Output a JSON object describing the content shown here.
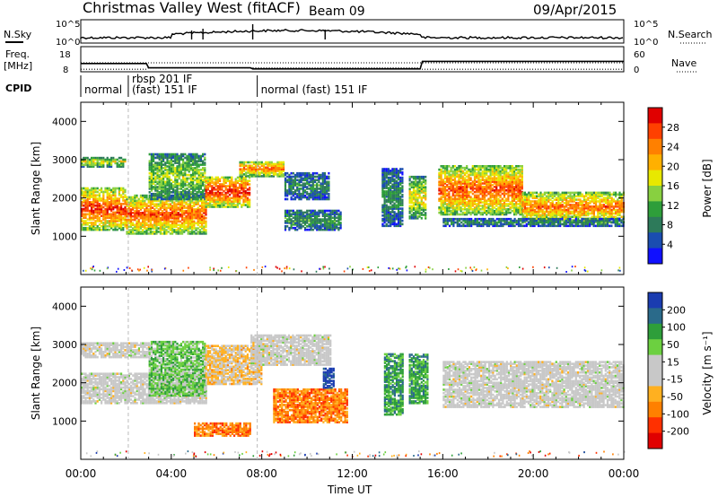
{
  "header": {
    "station": "Christmas Valley West (fitACF)",
    "beam": "Beam 09",
    "date": "09/Apr/2015"
  },
  "top_panels": {
    "nsky_label": "N.Sky",
    "nsky_ticks": [
      "10^5",
      "10^0"
    ],
    "nsearch_label": "N.Search",
    "nsearch_ticks": [
      "10^5",
      "10^0"
    ],
    "freq_label": "Freq.",
    "freq_unit": "[MHz]",
    "freq_ticks": [
      "18",
      "8"
    ],
    "nave_label": "Nave",
    "nave_ticks": [
      "60",
      "0"
    ],
    "cpid_label": "CPID",
    "cpid_segments": [
      {
        "start_h": 0.0,
        "text": "normal"
      },
      {
        "start_h": 2.1,
        "text": "rbsp 201 IF"
      },
      {
        "start_h": 2.1,
        "text": "(fast) 151 IF"
      },
      {
        "start_h": 7.8,
        "text": "normal (fast) 151 IF"
      }
    ],
    "freq_series": [
      [
        0,
        11
      ],
      [
        2.9,
        11
      ],
      [
        3.0,
        9
      ],
      [
        7.5,
        9
      ],
      [
        7.6,
        8.5
      ],
      [
        15.0,
        8.5
      ],
      [
        15.1,
        12
      ],
      [
        24,
        12
      ]
    ],
    "nave_series": [
      [
        0,
        2
      ],
      [
        2.9,
        2
      ],
      [
        3.0,
        6
      ],
      [
        14.9,
        6
      ],
      [
        15.0,
        2
      ],
      [
        24,
        2
      ]
    ]
  },
  "chart_data": [
    {
      "type": "heatmap",
      "panel": "power",
      "ylabel": "Slant Range [km]",
      "yticks": [
        1000,
        2000,
        3000,
        4000
      ],
      "ylim": [
        0,
        4500
      ],
      "xlim": [
        0,
        24
      ],
      "colorbar": {
        "label": "Power [dB]",
        "ticks": [
          "28",
          "24",
          "20",
          "16",
          "12",
          "8",
          "4"
        ],
        "colors": [
          "#e00000",
          "#ff4000",
          "#ff8000",
          "#ffb000",
          "#e8e800",
          "#88d040",
          "#2e9e3a",
          "#2d7a5a",
          "#1a4db0",
          "#1010ff"
        ]
      },
      "bands": [
        {
          "t0": 0.0,
          "t1": 2.0,
          "r0": 1200,
          "r1": 2300,
          "level": 0.9
        },
        {
          "t0": 0.0,
          "t1": 2.0,
          "r0": 2850,
          "r1": 3100,
          "level": 0.55
        },
        {
          "t0": 2.0,
          "t1": 5.5,
          "r0": 1100,
          "r1": 2100,
          "level": 0.85
        },
        {
          "t0": 3.0,
          "t1": 5.5,
          "r0": 2000,
          "r1": 3200,
          "level": 0.5
        },
        {
          "t0": 5.5,
          "t1": 7.5,
          "r0": 1800,
          "r1": 2600,
          "level": 0.95
        },
        {
          "t0": 7.0,
          "t1": 9.0,
          "r0": 2600,
          "r1": 3000,
          "level": 0.8
        },
        {
          "t0": 9.0,
          "t1": 11.5,
          "r0": 1200,
          "r1": 1700,
          "level": 0.35
        },
        {
          "t0": 9.0,
          "t1": 11.0,
          "r0": 2000,
          "r1": 2700,
          "level": 0.3
        },
        {
          "t0": 13.3,
          "t1": 14.2,
          "r0": 1300,
          "r1": 2800,
          "level": 0.3
        },
        {
          "t0": 14.5,
          "t1": 15.2,
          "r0": 1500,
          "r1": 2600,
          "level": 0.6
        },
        {
          "t0": 15.8,
          "t1": 19.5,
          "r0": 1600,
          "r1": 2900,
          "level": 0.85
        },
        {
          "t0": 19.5,
          "t1": 24.0,
          "r0": 1400,
          "r1": 2200,
          "level": 0.8
        },
        {
          "t0": 16.0,
          "t1": 24.0,
          "r0": 1300,
          "r1": 1500,
          "level": 0.3
        }
      ]
    },
    {
      "type": "heatmap",
      "panel": "velocity",
      "ylabel": "Slant Range [km]",
      "yticks": [
        1000,
        2000,
        3000,
        4000
      ],
      "ylim": [
        0,
        4500
      ],
      "xlim": [
        0,
        24
      ],
      "xticks": [
        "00:00",
        "04:00",
        "08:00",
        "12:00",
        "16:00",
        "20:00",
        "00:00"
      ],
      "xlabel": "Time UT",
      "colorbar": {
        "label": "Velocity [m s⁻¹]",
        "ticks": [
          "200",
          "100",
          "50",
          "15",
          "-15",
          "-50",
          "-100",
          "-200"
        ],
        "colors": [
          "#1a3cb0",
          "#2a6a8a",
          "#2e9e3a",
          "#6cd040",
          "#c8c8c8",
          "#c8c8c8",
          "#ffb020",
          "#ff8000",
          "#ff3000",
          "#e00000"
        ]
      },
      "bands": [
        {
          "t0": 0.0,
          "t1": 5.5,
          "r0": 1500,
          "r1": 2300,
          "level": 0.5
        },
        {
          "t0": 0.0,
          "t1": 3.0,
          "r0": 2700,
          "r1": 3100,
          "level": 0.5
        },
        {
          "t0": 3.0,
          "t1": 5.5,
          "r0": 1700,
          "r1": 3100,
          "level": 0.35
        },
        {
          "t0": 5.5,
          "t1": 8.0,
          "r0": 2000,
          "r1": 3000,
          "level": 0.6
        },
        {
          "t0": 7.5,
          "t1": 11.0,
          "r0": 2500,
          "r1": 3300,
          "level": 0.5
        },
        {
          "t0": 8.5,
          "t1": 11.8,
          "r0": 1000,
          "r1": 1900,
          "level": 0.75
        },
        {
          "t0": 10.7,
          "t1": 11.2,
          "r0": 1900,
          "r1": 2400,
          "level": 0.05
        },
        {
          "t0": 5.0,
          "t1": 7.5,
          "r0": 650,
          "r1": 1000,
          "level": 0.75
        },
        {
          "t0": 13.4,
          "t1": 14.2,
          "r0": 1200,
          "r1": 2800,
          "level": 0.25
        },
        {
          "t0": 14.5,
          "t1": 15.3,
          "r0": 1500,
          "r1": 2800,
          "level": 0.25
        },
        {
          "t0": 16.0,
          "t1": 24.0,
          "r0": 1400,
          "r1": 2600,
          "level": 0.5
        }
      ]
    }
  ]
}
